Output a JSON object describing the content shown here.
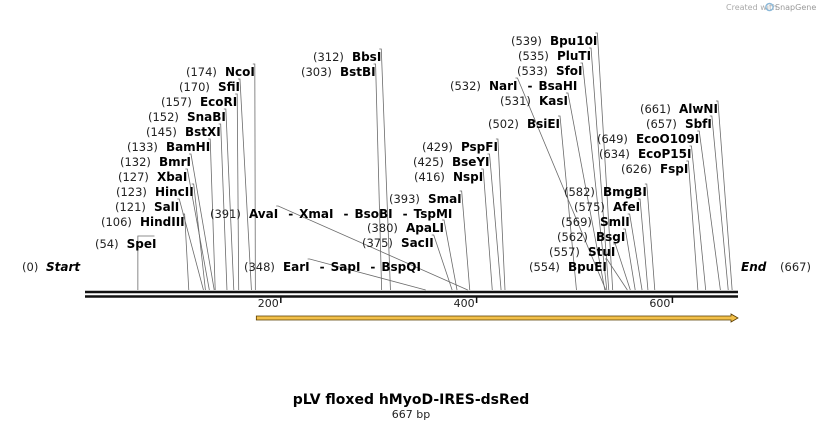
{
  "credit": {
    "created_by": "Created with",
    "brand": "SnapGene"
  },
  "sequence": {
    "start": 0,
    "end": 667,
    "start_label": "Start",
    "end_label": "End"
  },
  "ruler": {
    "ticks": [
      200,
      400,
      600
    ]
  },
  "feature": {
    "from": 175,
    "to": 667,
    "color": "#f2c04a"
  },
  "title": {
    "name": "pLV floxed hMyoD-IRES-dsRed",
    "length": "667 bp"
  },
  "sites": [
    {
      "pos": 54,
      "names": [
        "SpeI"
      ]
    },
    {
      "pos": 106,
      "names": [
        "HindIII"
      ]
    },
    {
      "pos": 121,
      "names": [
        "SalI"
      ]
    },
    {
      "pos": 123,
      "names": [
        "HincII"
      ]
    },
    {
      "pos": 127,
      "names": [
        "XbaI"
      ]
    },
    {
      "pos": 132,
      "names": [
        "BmrI"
      ]
    },
    {
      "pos": 133,
      "names": [
        "BamHI"
      ]
    },
    {
      "pos": 145,
      "names": [
        "BstXI"
      ]
    },
    {
      "pos": 152,
      "names": [
        "SnaBI"
      ]
    },
    {
      "pos": 157,
      "names": [
        "EcoRI"
      ]
    },
    {
      "pos": 170,
      "names": [
        "SfiI"
      ]
    },
    {
      "pos": 174,
      "names": [
        "NcoI"
      ]
    },
    {
      "pos": 391,
      "names": [
        "AvaI",
        "XmaI",
        "BsoBI",
        "TspMI"
      ]
    },
    {
      "pos": 348,
      "names": [
        "EarI",
        "SapI",
        "BspQI"
      ]
    },
    {
      "pos": 303,
      "names": [
        "BstBI"
      ]
    },
    {
      "pos": 312,
      "names": [
        "BbsI"
      ]
    },
    {
      "pos": 375,
      "names": [
        "SacII"
      ]
    },
    {
      "pos": 380,
      "names": [
        "ApaLI"
      ]
    },
    {
      "pos": 393,
      "names": [
        "SmaI"
      ]
    },
    {
      "pos": 416,
      "names": [
        "NspI"
      ]
    },
    {
      "pos": 425,
      "names": [
        "BseYI"
      ]
    },
    {
      "pos": 429,
      "names": [
        "PspFI"
      ]
    },
    {
      "pos": 502,
      "names": [
        "BsiEI"
      ]
    },
    {
      "pos": 531,
      "names": [
        "KasI"
      ]
    },
    {
      "pos": 532,
      "names": [
        "NarI",
        "BsaHI"
      ]
    },
    {
      "pos": 533,
      "names": [
        "SfoI"
      ]
    },
    {
      "pos": 535,
      "names": [
        "PluTI"
      ]
    },
    {
      "pos": 539,
      "names": [
        "Bpu10I"
      ]
    },
    {
      "pos": 554,
      "names": [
        "BpuEI"
      ]
    },
    {
      "pos": 557,
      "names": [
        "StuI"
      ]
    },
    {
      "pos": 562,
      "names": [
        "BsgI"
      ]
    },
    {
      "pos": 569,
      "names": [
        "SmlI"
      ]
    },
    {
      "pos": 575,
      "names": [
        "AfeI"
      ]
    },
    {
      "pos": 582,
      "names": [
        "BmgBI"
      ]
    },
    {
      "pos": 626,
      "names": [
        "FspI"
      ]
    },
    {
      "pos": 634,
      "names": [
        "EcoP15I"
      ]
    },
    {
      "pos": 649,
      "names": [
        "EcoO109I"
      ]
    },
    {
      "pos": 657,
      "names": [
        "SbfI"
      ]
    },
    {
      "pos": 661,
      "names": [
        "AlwNI"
      ]
    }
  ]
}
